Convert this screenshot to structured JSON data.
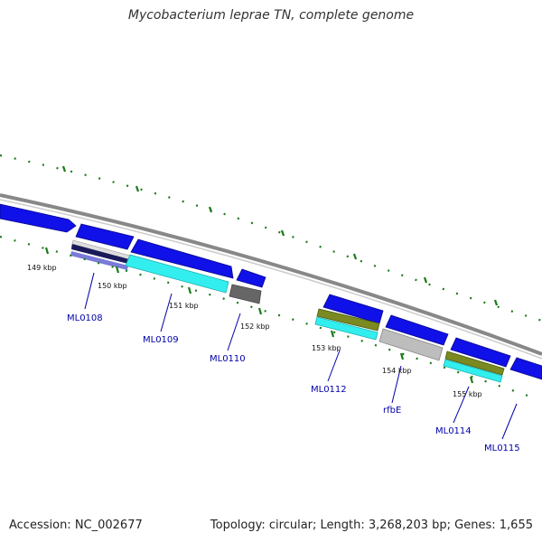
{
  "title": "Mycobacterium leprae TN, complete genome",
  "footer": {
    "accession": "Accession: NC_002677",
    "summary": "Topology: circular; Length: 3,268,203 bp; Genes: 1,655"
  },
  "ticks": [
    {
      "label": "149 kbp"
    },
    {
      "label": "150 kbp"
    },
    {
      "label": "151 kbp"
    },
    {
      "label": "152 kbp"
    },
    {
      "label": "153 kbp"
    },
    {
      "label": "154 kbp"
    },
    {
      "label": "155 kbp"
    }
  ],
  "genes": [
    {
      "name": "ML0108"
    },
    {
      "name": "ML0109"
    },
    {
      "name": "ML0110"
    },
    {
      "name": "ML0112"
    },
    {
      "name": "rfbE"
    },
    {
      "name": "ML0114"
    },
    {
      "name": "ML0115"
    }
  ],
  "colors": {
    "backbone": "#888888",
    "cds": "#1010e8",
    "tick": "#1a7a1a",
    "gene_label": "#0000aa",
    "cyan": "#33eeee",
    "olive": "#7a8a20",
    "gray": "#bdbdbd",
    "darkgray": "#666666",
    "navy": "#1a1a5a"
  }
}
